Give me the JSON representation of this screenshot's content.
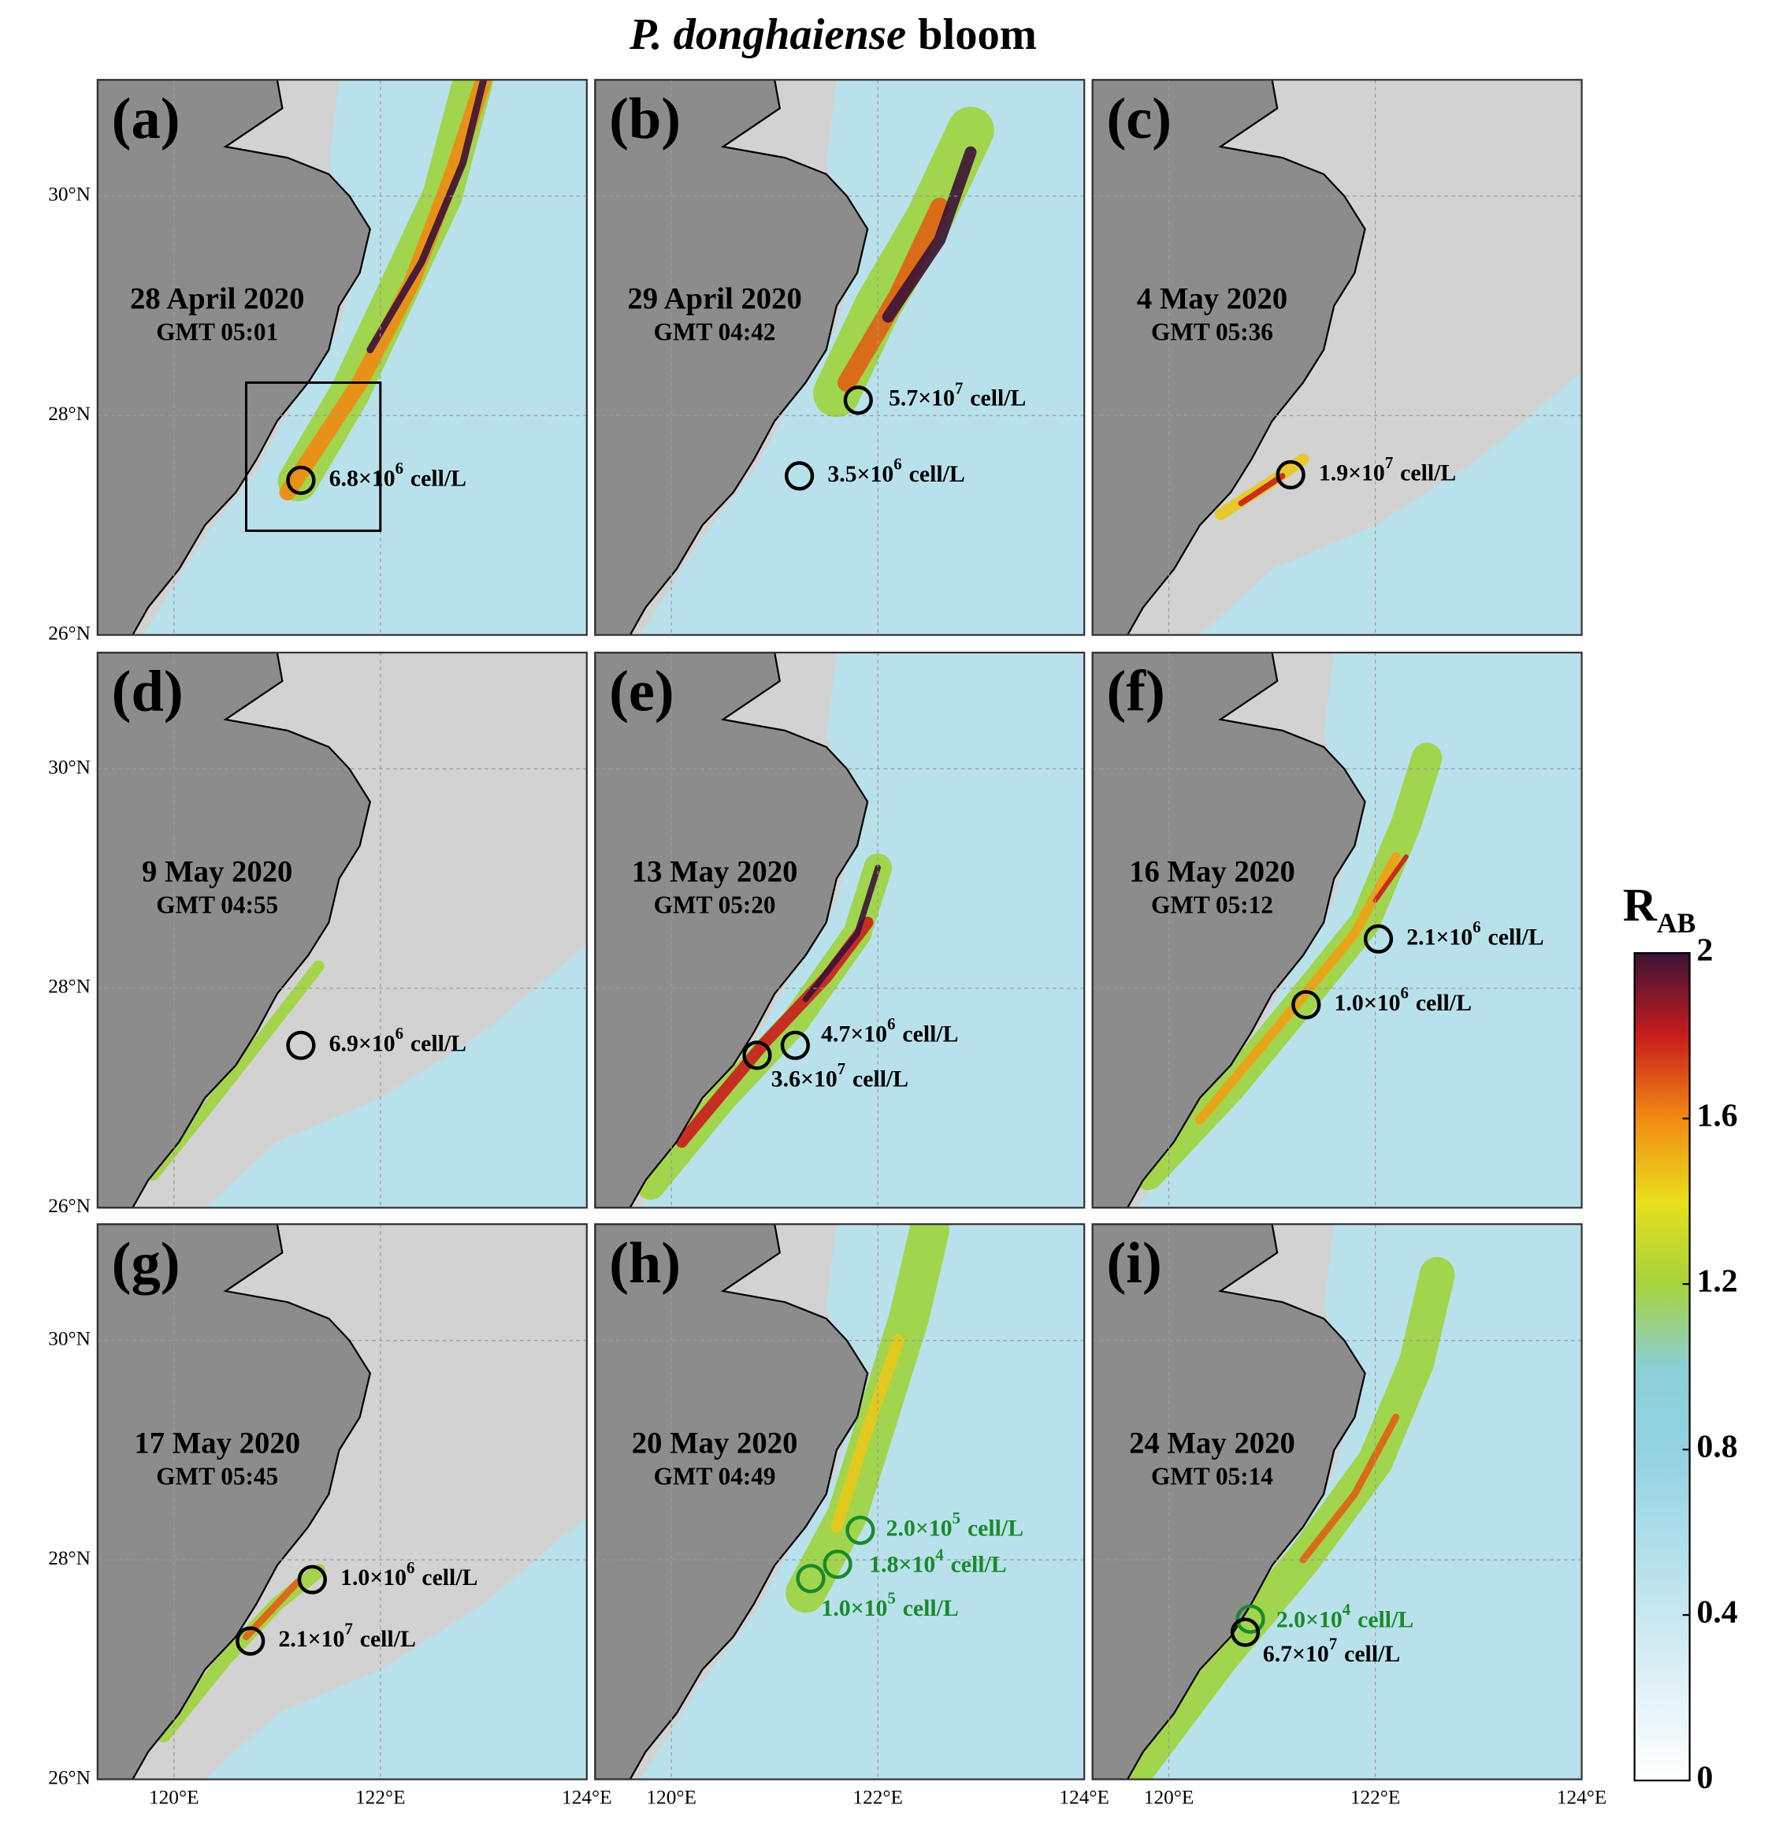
{
  "title_italic": "P. donghaiense",
  "title": "bloom",
  "map": {
    "xlim": [
      119.26,
      124
    ],
    "ylim": [
      26,
      31.06
    ],
    "xticks": [
      {
        "value": 120,
        "label": "120°E"
      },
      {
        "value": 122,
        "label": "122°E"
      },
      {
        "value": 124,
        "label": "124°E"
      }
    ],
    "yticks": [
      {
        "value": 26,
        "label": "26°N"
      },
      {
        "value": 28,
        "label": "28°N"
      },
      {
        "value": 30,
        "label": "30°N"
      }
    ],
    "grid": true
  },
  "panels": [
    {
      "label": "(a)",
      "date": "28 April 2020",
      "time": "GMT 05:01",
      "samples": [
        {
          "lon": 121.23,
          "lat": 27.41,
          "text": "6.8×10",
          "exp": "6",
          "unit": "cell/L",
          "color": "#000000"
        }
      ]
    },
    {
      "label": "(b)",
      "date": "29 April 2020",
      "time": "GMT 04:42",
      "samples": [
        {
          "lon": 121.81,
          "lat": 28.14,
          "text": "5.7×10",
          "exp": "7",
          "unit": "cell/L",
          "color": "#000000"
        },
        {
          "lon": 121.24,
          "lat": 27.45,
          "text": "3.5×10",
          "exp": "6",
          "unit": "cell/L",
          "color": "#000000"
        }
      ]
    },
    {
      "label": "(c)",
      "date": "4 May 2020",
      "time": "GMT 05:36",
      "samples": [
        {
          "lon": 121.18,
          "lat": 27.46,
          "text": "1.9×10",
          "exp": "7",
          "unit": "cell/L",
          "color": "#000000"
        }
      ]
    },
    {
      "label": "(d)",
      "date": "9 May 2020",
      "time": "GMT 04:55",
      "samples": [
        {
          "lon": 121.23,
          "lat": 27.48,
          "text": "6.9×10",
          "exp": "6",
          "unit": "cell/L",
          "color": "#000000"
        }
      ]
    },
    {
      "label": "(e)",
      "date": "13 May 2020",
      "time": "GMT 05:20",
      "samples": [
        {
          "lon": 120.83,
          "lat": 27.39,
          "text": "3.6×10",
          "exp": "7",
          "unit": "cell/L",
          "color": "#000000"
        },
        {
          "lon": 121.2,
          "lat": 27.48,
          "text": "4.7×10",
          "exp": "6",
          "unit": "cell/L",
          "color": "#000000"
        }
      ]
    },
    {
      "label": "(f)",
      "date": "16 May 2020",
      "time": "GMT 05:12",
      "samples": [
        {
          "lon": 122.03,
          "lat": 28.45,
          "text": "2.1×10",
          "exp": "6",
          "unit": "cell/L",
          "color": "#000000"
        },
        {
          "lon": 121.33,
          "lat": 27.85,
          "text": "1.0×10",
          "exp": "6",
          "unit": "cell/L",
          "color": "#000000"
        }
      ]
    },
    {
      "label": "(g)",
      "date": "17 May 2020",
      "time": "GMT 05:45",
      "samples": [
        {
          "lon": 121.34,
          "lat": 27.82,
          "text": "1.0×10",
          "exp": "6",
          "unit": "cell/L",
          "color": "#000000"
        },
        {
          "lon": 120.74,
          "lat": 27.26,
          "text": "2.1×10",
          "exp": "7",
          "unit": "cell/L",
          "color": "#000000"
        }
      ]
    },
    {
      "label": "(h)",
      "date": "20 May 2020",
      "time": "GMT 04:49",
      "samples": [
        {
          "lon": 121.83,
          "lat": 28.27,
          "text": "2.0×10",
          "exp": "5",
          "unit": "cell/L",
          "color": "#1a8a2a"
        },
        {
          "lon": 121.61,
          "lat": 27.96,
          "text": "1.8×10",
          "exp": "4",
          "unit": "cell/L",
          "color": "#1a8a2a"
        },
        {
          "lon": 121.35,
          "lat": 27.83,
          "text": "1.0×10",
          "exp": "5",
          "unit": "cell/L",
          "color": "#1a8a2a"
        }
      ]
    },
    {
      "label": "(i)",
      "date": "24 May 2020",
      "time": "GMT 05:14",
      "samples": [
        {
          "lon": 120.79,
          "lat": 27.46,
          "text": "2.0×10",
          "exp": "4",
          "unit": "cell/L",
          "color": "#1a8a2a"
        },
        {
          "lon": 120.74,
          "lat": 27.34,
          "text": "6.7×10",
          "exp": "7",
          "unit": "cell/L",
          "color": "#000000"
        }
      ]
    }
  ],
  "colorbar": {
    "label": "R",
    "label_sub": "AB",
    "lim": [
      0,
      2
    ],
    "ticks": [
      0,
      0.4,
      0.8,
      1.2,
      1.6,
      2
    ],
    "colors": [
      "#ffffff",
      "#e4f3f7",
      "#c8e8f0",
      "#acdde9",
      "#93d2e2",
      "#8ccfd6",
      "#a6d33c",
      "#e9df1c",
      "#f28a12",
      "#c91d1d",
      "#3b1236"
    ]
  }
}
